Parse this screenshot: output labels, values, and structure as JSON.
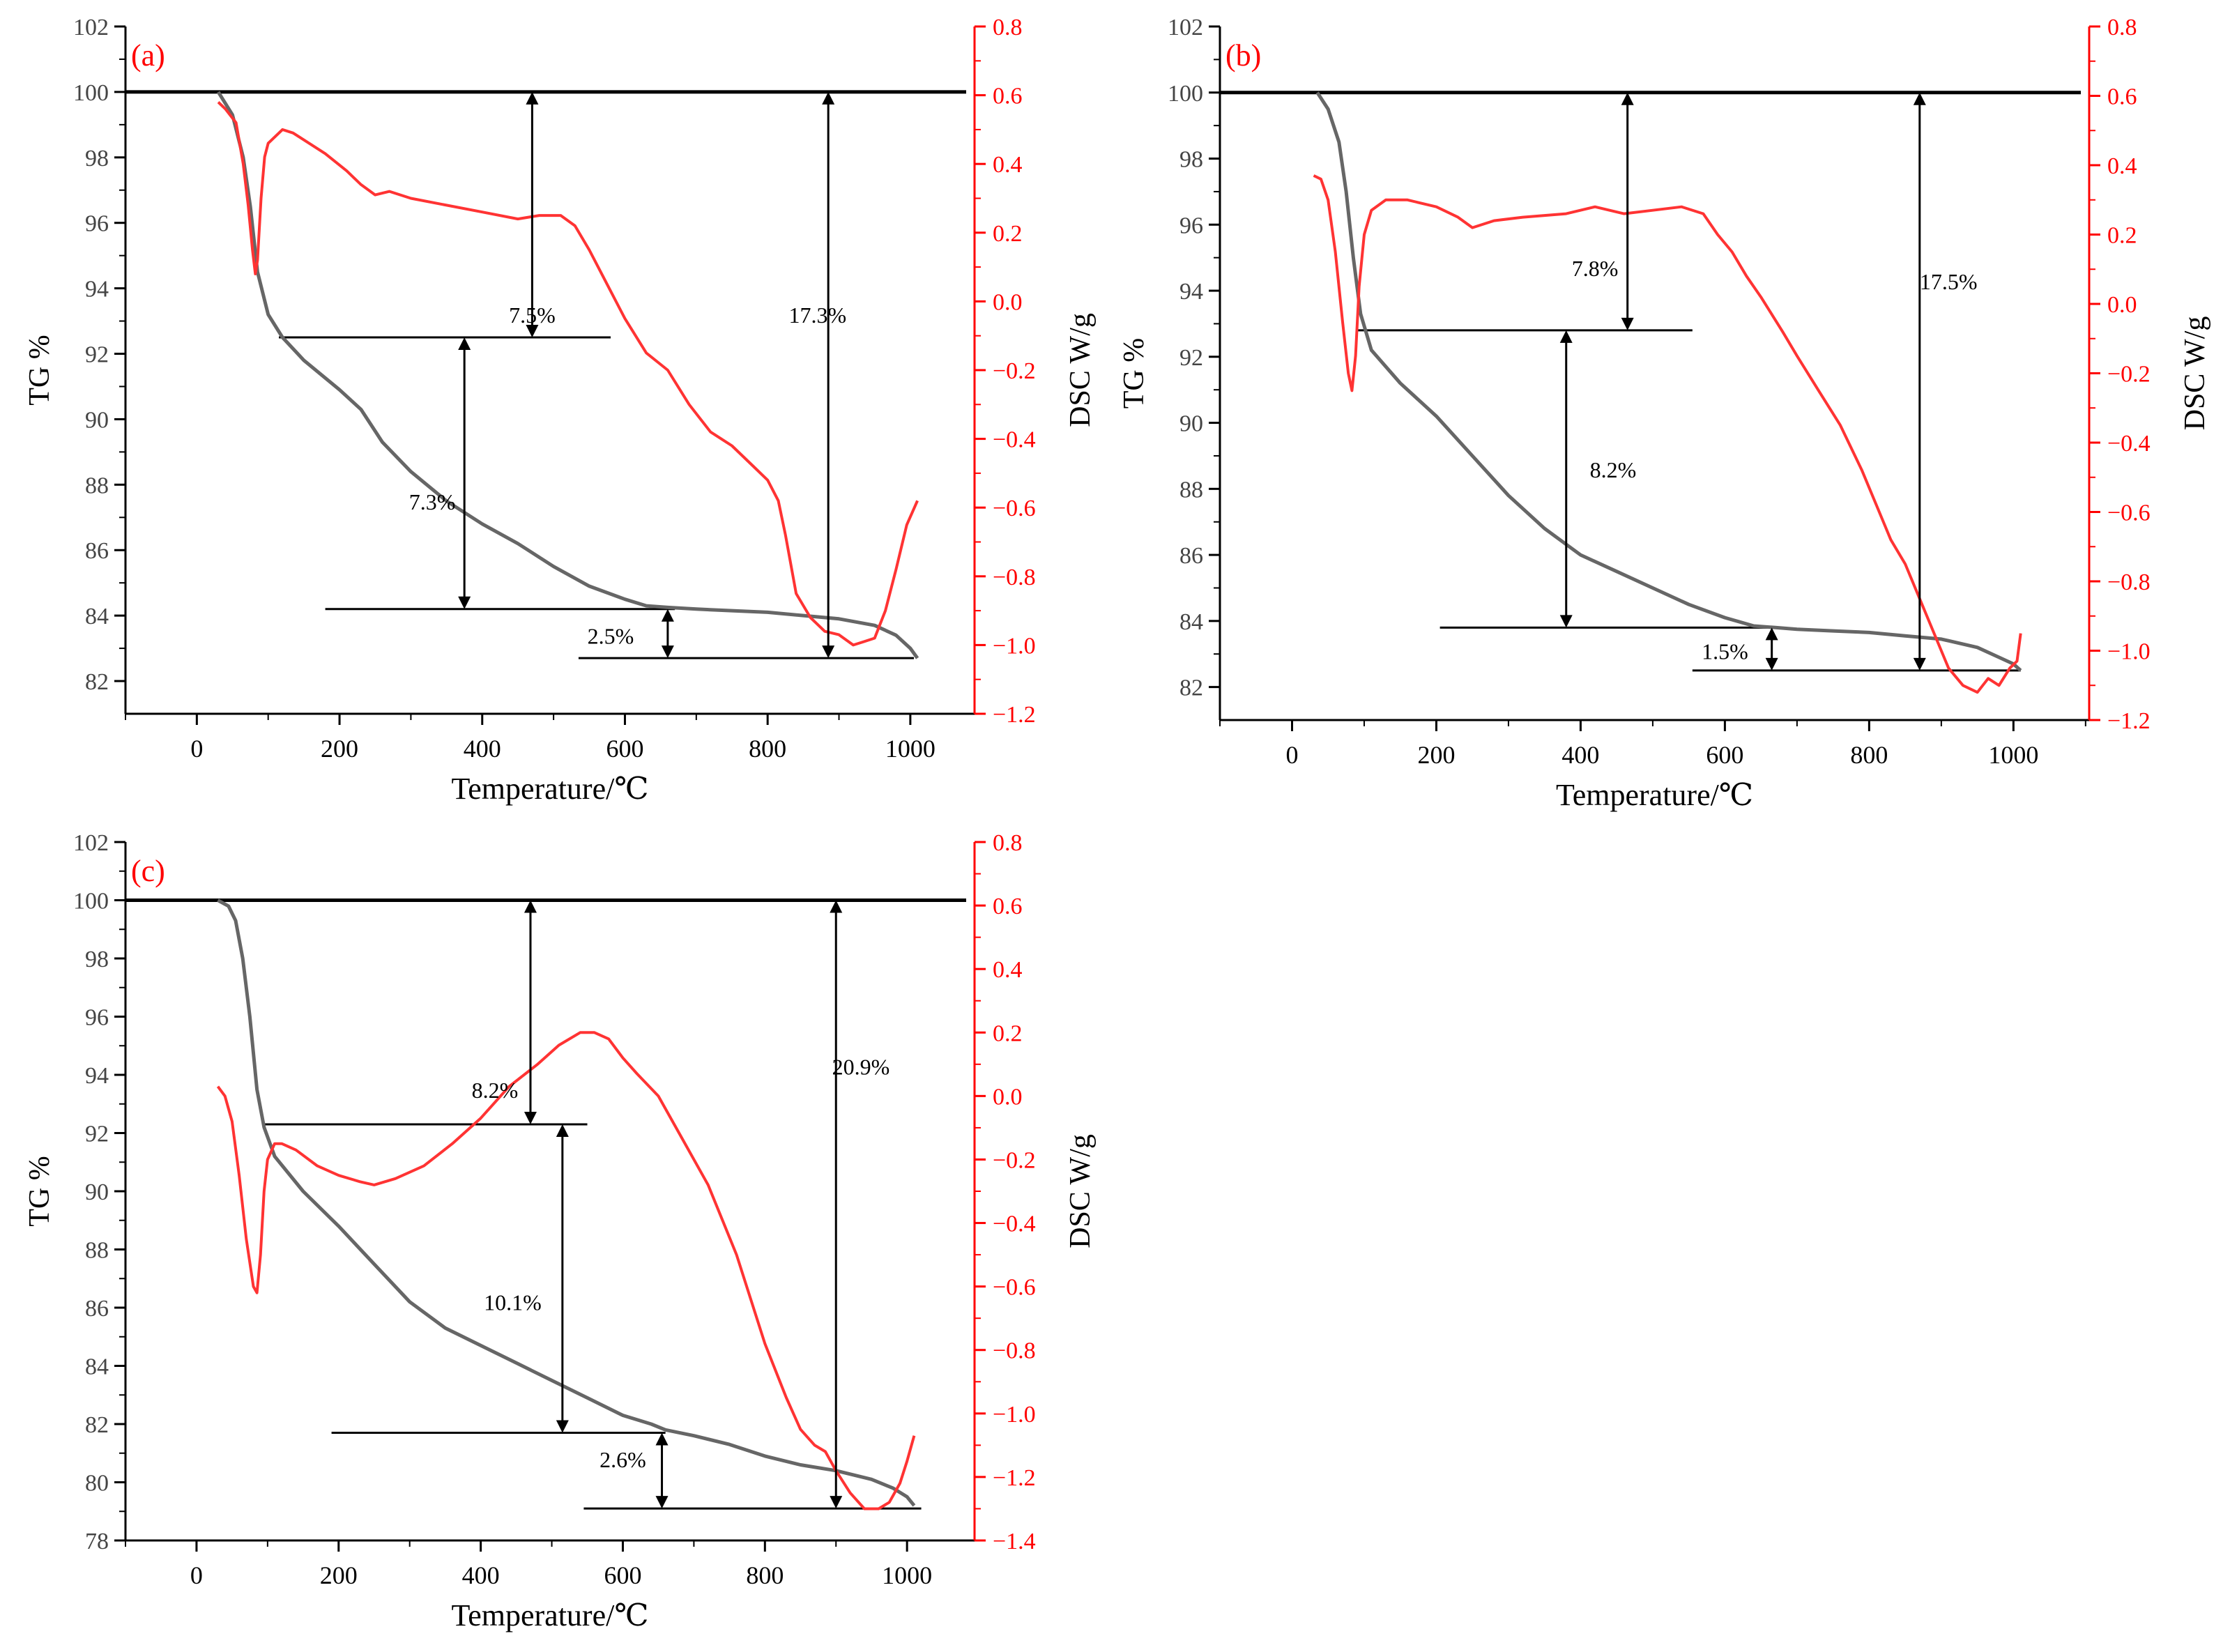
{
  "colors": {
    "axis": "#000000",
    "tg_curve": "#666666",
    "dsc_curve": "#ff3333",
    "dsc_axis": "#ff0000",
    "panel_label": "#ff0000",
    "baseline": "#000000"
  },
  "chart_data": [
    {
      "type": "line",
      "panel_label": "(a)",
      "xlabel": "Temperature/℃",
      "ylabel_left": "TG %",
      "ylabel_right": "DSC W/g",
      "xlim": [
        -100,
        1090
      ],
      "xticks": [
        "0",
        "200",
        "400",
        "600",
        "800",
        "1000"
      ],
      "xtick_values": [
        0,
        200,
        400,
        600,
        800,
        1000
      ],
      "ylim_left": [
        81,
        102
      ],
      "yticks_left": [
        "82",
        "84",
        "86",
        "88",
        "90",
        "92",
        "94",
        "96",
        "98",
        "100",
        "102"
      ],
      "ytick_values_left": [
        82,
        84,
        86,
        88,
        90,
        92,
        94,
        96,
        98,
        100,
        102
      ],
      "ylim_right": [
        -1.2,
        0.8
      ],
      "yticks_right": [
        "0.8",
        "0.6",
        "0.4",
        "0.2",
        "0.0",
        "−0.2",
        "−0.4",
        "−0.6",
        "−0.8",
        "−1.0",
        "−1.2"
      ],
      "ytick_values_right": [
        0.8,
        0.6,
        0.4,
        0.2,
        0.0,
        -0.2,
        -0.4,
        -0.6,
        -0.8,
        -1.0,
        -1.2
      ],
      "baseline_tg": 100,
      "series": [
        {
          "name": "TG",
          "axis": "left",
          "x": [
            30,
            50,
            65,
            75,
            85,
            100,
            120,
            150,
            200,
            230,
            260,
            300,
            350,
            400,
            450,
            500,
            550,
            600,
            630,
            660,
            700,
            750,
            800,
            850,
            900,
            950,
            980,
            1000,
            1010
          ],
          "values": [
            100,
            99.3,
            98,
            96.5,
            94.5,
            93.2,
            92.5,
            91.8,
            90.9,
            90.3,
            89.3,
            88.4,
            87.5,
            86.8,
            86.2,
            85.5,
            84.9,
            84.5,
            84.3,
            84.25,
            84.2,
            84.15,
            84.1,
            84.0,
            83.9,
            83.7,
            83.4,
            83.0,
            82.7
          ]
        },
        {
          "name": "DSC",
          "axis": "right",
          "x": [
            30,
            40,
            55,
            65,
            72,
            78,
            82,
            85,
            90,
            95,
            100,
            110,
            120,
            135,
            150,
            180,
            210,
            230,
            250,
            270,
            300,
            350,
            400,
            450,
            480,
            510,
            530,
            550,
            575,
            600,
            630,
            660,
            690,
            720,
            750,
            780,
            800,
            815,
            825,
            840,
            860,
            880,
            900,
            920,
            935,
            950,
            965,
            980,
            995,
            1010
          ],
          "values": [
            0.58,
            0.56,
            0.52,
            0.4,
            0.28,
            0.15,
            0.08,
            0.12,
            0.3,
            0.42,
            0.46,
            0.48,
            0.5,
            0.49,
            0.47,
            0.43,
            0.38,
            0.34,
            0.31,
            0.32,
            0.3,
            0.28,
            0.26,
            0.24,
            0.25,
            0.25,
            0.22,
            0.15,
            0.05,
            -0.05,
            -0.15,
            -0.2,
            -0.3,
            -0.38,
            -0.42,
            -0.48,
            -0.52,
            -0.58,
            -0.68,
            -0.85,
            -0.92,
            -0.96,
            -0.97,
            -1.0,
            -0.99,
            -0.98,
            -0.9,
            -0.78,
            -0.65,
            -0.58
          ]
        }
      ],
      "annotations": [
        {
          "text": "7.5%",
          "x": 470,
          "y": 93.2,
          "line_x": 470,
          "line_y": [
            92.5,
            100
          ]
        },
        {
          "text": "17.3%",
          "x": 870,
          "y": 93.2,
          "line_x": 885,
          "line_y": [
            82.7,
            100
          ]
        },
        {
          "text": "7.3%",
          "x": 330,
          "y": 87.5,
          "line_x": 375,
          "line_y": [
            84.2,
            92.5
          ]
        },
        {
          "text": "2.5%",
          "x": 580,
          "y": 83.4,
          "line_x": 660,
          "line_y": [
            82.7,
            84.2
          ]
        }
      ],
      "hlines": [
        {
          "y": 92.5,
          "x": [
            115,
            580
          ]
        },
        {
          "y": 84.2,
          "x": [
            180,
            670
          ]
        },
        {
          "y": 82.7,
          "x": [
            535,
            1005
          ]
        }
      ]
    },
    {
      "type": "line",
      "panel_label": "(b)",
      "xlabel": "Temperature/℃",
      "ylabel_left": "TG %",
      "ylabel_right": "DSC W/g",
      "xlim": [
        -100,
        1105
      ],
      "xticks": [
        "0",
        "200",
        "400",
        "600",
        "800",
        "1000"
      ],
      "xtick_values": [
        0,
        200,
        400,
        600,
        800,
        1000
      ],
      "ylim_left": [
        81,
        102
      ],
      "yticks_left": [
        "82",
        "84",
        "86",
        "88",
        "90",
        "92",
        "94",
        "96",
        "98",
        "100",
        "102"
      ],
      "ytick_values_left": [
        82,
        84,
        86,
        88,
        90,
        92,
        94,
        96,
        98,
        100,
        102
      ],
      "ylim_right": [
        -1.2,
        0.8
      ],
      "yticks_right": [
        "0.8",
        "0.6",
        "0.4",
        "0.2",
        "0.0",
        "−0.2",
        "−0.4",
        "−0.6",
        "−0.8",
        "−1.0",
        "−1.2"
      ],
      "ytick_values_right": [
        0.8,
        0.6,
        0.4,
        0.2,
        0.0,
        -0.2,
        -0.4,
        -0.6,
        -0.8,
        -1.0,
        -1.2
      ],
      "baseline_tg": 100,
      "series": [
        {
          "name": "TG",
          "axis": "left",
          "x": [
            35,
            50,
            65,
            75,
            85,
            95,
            110,
            150,
            200,
            250,
            300,
            350,
            400,
            450,
            500,
            550,
            600,
            640,
            670,
            700,
            750,
            800,
            850,
            900,
            950,
            980,
            1000,
            1010
          ],
          "values": [
            100,
            99.5,
            98.5,
            97,
            95,
            93.3,
            92.2,
            91.2,
            90.2,
            89,
            87.8,
            86.8,
            86.0,
            85.5,
            85.0,
            84.5,
            84.1,
            83.85,
            83.8,
            83.75,
            83.7,
            83.65,
            83.55,
            83.45,
            83.2,
            82.9,
            82.7,
            82.5
          ]
        },
        {
          "name": "DSC",
          "axis": "right",
          "x": [
            30,
            40,
            50,
            60,
            70,
            78,
            83,
            88,
            93,
            100,
            110,
            130,
            160,
            200,
            230,
            250,
            280,
            320,
            380,
            420,
            460,
            500,
            540,
            570,
            590,
            610,
            630,
            650,
            680,
            700,
            730,
            760,
            790,
            810,
            830,
            850,
            870,
            890,
            910,
            930,
            950,
            965,
            980,
            995,
            1005,
            1010
          ],
          "values": [
            0.37,
            0.36,
            0.3,
            0.15,
            -0.05,
            -0.2,
            -0.25,
            -0.15,
            0.05,
            0.2,
            0.27,
            0.3,
            0.3,
            0.28,
            0.25,
            0.22,
            0.24,
            0.25,
            0.26,
            0.28,
            0.26,
            0.27,
            0.28,
            0.26,
            0.2,
            0.15,
            0.08,
            0.02,
            -0.08,
            -0.15,
            -0.25,
            -0.35,
            -0.48,
            -0.58,
            -0.68,
            -0.75,
            -0.85,
            -0.95,
            -1.05,
            -1.1,
            -1.12,
            -1.08,
            -1.1,
            -1.05,
            -1.03,
            -0.95
          ]
        }
      ],
      "annotations": [
        {
          "text": "7.8%",
          "x": 420,
          "y": 94.7,
          "line_x": 465,
          "line_y": [
            92.8,
            100
          ]
        },
        {
          "text": "17.5%",
          "x": 910,
          "y": 94.3,
          "line_x": 870,
          "line_y": [
            82.5,
            100
          ]
        },
        {
          "text": "8.2%",
          "x": 445,
          "y": 88.6,
          "line_x": 380,
          "line_y": [
            83.8,
            92.8
          ]
        },
        {
          "text": "1.5%",
          "x": 600,
          "y": 83.1,
          "line_x": 665,
          "line_y": [
            82.5,
            83.8
          ]
        }
      ],
      "hlines": [
        {
          "y": 92.8,
          "x": [
            90,
            555
          ]
        },
        {
          "y": 83.8,
          "x": [
            205,
            670
          ]
        },
        {
          "y": 82.5,
          "x": [
            555,
            1010
          ]
        }
      ]
    },
    {
      "type": "line",
      "panel_label": "(c)",
      "xlabel": "Temperature/℃",
      "ylabel_left": "TG %",
      "ylabel_right": "DSC W/g",
      "xlim": [
        -100,
        1095
      ],
      "xticks": [
        "0",
        "200",
        "400",
        "600",
        "800",
        "1000"
      ],
      "xtick_values": [
        0,
        200,
        400,
        600,
        800,
        1000
      ],
      "ylim_left": [
        78,
        102
      ],
      "yticks_left": [
        "78",
        "80",
        "82",
        "84",
        "86",
        "88",
        "90",
        "92",
        "94",
        "96",
        "98",
        "100",
        "102"
      ],
      "ytick_values_left": [
        78,
        80,
        82,
        84,
        86,
        88,
        90,
        92,
        94,
        96,
        98,
        100,
        102
      ],
      "ylim_right": [
        -1.4,
        0.8
      ],
      "yticks_right": [
        "0.8",
        "0.6",
        "0.4",
        "0.2",
        "0.0",
        "−0.2",
        "−0.4",
        "−0.6",
        "−0.8",
        "−1.0",
        "−1.2",
        "−1.4"
      ],
      "ytick_values_right": [
        0.8,
        0.6,
        0.4,
        0.2,
        0.0,
        -0.2,
        -0.4,
        -0.6,
        -0.8,
        -1.0,
        -1.2,
        -1.4
      ],
      "baseline_tg": 100,
      "series": [
        {
          "name": "TG",
          "axis": "left",
          "x": [
            30,
            45,
            55,
            65,
            75,
            85,
            95,
            110,
            150,
            200,
            250,
            300,
            350,
            400,
            450,
            500,
            550,
            600,
            640,
            660,
            700,
            750,
            800,
            850,
            900,
            950,
            980,
            1000,
            1010
          ],
          "values": [
            100,
            99.8,
            99.3,
            98,
            96,
            93.5,
            92.2,
            91.2,
            90,
            88.8,
            87.5,
            86.2,
            85.3,
            84.7,
            84.1,
            83.5,
            82.9,
            82.3,
            82.0,
            81.8,
            81.6,
            81.3,
            80.9,
            80.6,
            80.4,
            80.1,
            79.8,
            79.5,
            79.2
          ]
        },
        {
          "name": "DSC",
          "axis": "right",
          "x": [
            30,
            40,
            50,
            60,
            70,
            80,
            85,
            90,
            95,
            100,
            110,
            120,
            140,
            170,
            200,
            230,
            250,
            280,
            320,
            360,
            400,
            440,
            480,
            510,
            540,
            560,
            580,
            600,
            620,
            650,
            680,
            720,
            760,
            800,
            830,
            850,
            870,
            885,
            900,
            920,
            940,
            960,
            975,
            990,
            1000,
            1010
          ],
          "values": [
            0.03,
            0.0,
            -0.08,
            -0.25,
            -0.45,
            -0.6,
            -0.62,
            -0.5,
            -0.3,
            -0.2,
            -0.15,
            -0.15,
            -0.17,
            -0.22,
            -0.25,
            -0.27,
            -0.28,
            -0.26,
            -0.22,
            -0.15,
            -0.07,
            0.03,
            0.1,
            0.16,
            0.2,
            0.2,
            0.18,
            0.12,
            0.07,
            0.0,
            -0.12,
            -0.28,
            -0.5,
            -0.78,
            -0.95,
            -1.05,
            -1.1,
            -1.12,
            -1.18,
            -1.25,
            -1.3,
            -1.3,
            -1.28,
            -1.22,
            -1.15,
            -1.07
          ]
        }
      ],
      "annotations": [
        {
          "text": "8.2%",
          "x": 420,
          "y": 93.5,
          "line_x": 470,
          "line_y": [
            92.3,
            100
          ]
        },
        {
          "text": "20.9%",
          "x": 935,
          "y": 94.3,
          "line_x": 900,
          "line_y": [
            79.1,
            100
          ]
        },
        {
          "text": "10.1%",
          "x": 445,
          "y": 86.2,
          "line_x": 515,
          "line_y": [
            81.7,
            92.3
          ]
        },
        {
          "text": "2.6%",
          "x": 600,
          "y": 80.8,
          "line_x": 655,
          "line_y": [
            79.1,
            81.7
          ]
        }
      ],
      "hlines": [
        {
          "y": 92.3,
          "x": [
            95,
            550
          ]
        },
        {
          "y": 81.7,
          "x": [
            190,
            660
          ]
        },
        {
          "y": 79.1,
          "x": [
            545,
            1020
          ]
        }
      ]
    }
  ]
}
